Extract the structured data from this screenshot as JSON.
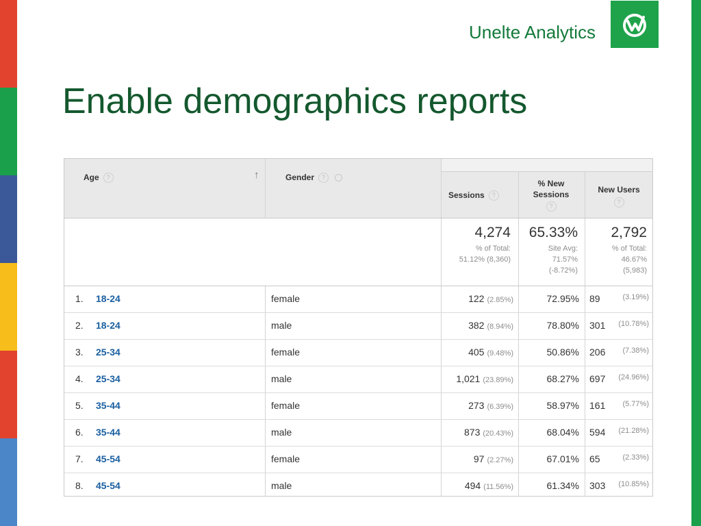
{
  "slide": {
    "brand": "Unelte Analytics",
    "title": "Enable demographics reports",
    "stripe_colors": [
      "#e2432e",
      "#1aa04a",
      "#3b5998",
      "#f7bd1a",
      "#e2432e",
      "#4a86c8"
    ]
  },
  "report": {
    "headers": {
      "age": "Age",
      "gender": "Gender",
      "sessions": "Sessions",
      "new_sessions": "% New Sessions",
      "new_users": "New Users",
      "help_glyph": "?",
      "sort_arrow": "↑"
    },
    "totals": {
      "sessions": {
        "value": "4,274",
        "line1": "% of Total:",
        "line2": "51.12% (8,360)"
      },
      "new_sessions": {
        "value": "65.33%",
        "line1": "Site Avg:",
        "line2": "71.57%",
        "line3": "(-8.72%)"
      },
      "new_users": {
        "value": "2,792",
        "line1": "% of Total:",
        "line2": "46.67%",
        "line3": "(5,983)"
      }
    },
    "rows": [
      {
        "index": "1.",
        "age": "18-24",
        "gender": "female",
        "sessions": "122",
        "sessions_pct": "(2.85%)",
        "new_sessions": "72.95%",
        "new_users": "89",
        "new_users_pct": "(3.19%)"
      },
      {
        "index": "2.",
        "age": "18-24",
        "gender": "male",
        "sessions": "382",
        "sessions_pct": "(8.94%)",
        "new_sessions": "78.80%",
        "new_users": "301",
        "new_users_pct": "(10.78%)"
      },
      {
        "index": "3.",
        "age": "25-34",
        "gender": "female",
        "sessions": "405",
        "sessions_pct": "(9.48%)",
        "new_sessions": "50.86%",
        "new_users": "206",
        "new_users_pct": "(7.38%)"
      },
      {
        "index": "4.",
        "age": "25-34",
        "gender": "male",
        "sessions": "1,021",
        "sessions_pct": "(23.89%)",
        "new_sessions": "68.27%",
        "new_users": "697",
        "new_users_pct": "(24.96%)"
      },
      {
        "index": "5.",
        "age": "35-44",
        "gender": "female",
        "sessions": "273",
        "sessions_pct": "(6.39%)",
        "new_sessions": "58.97%",
        "new_users": "161",
        "new_users_pct": "(5.77%)"
      },
      {
        "index": "6.",
        "age": "35-44",
        "gender": "male",
        "sessions": "873",
        "sessions_pct": "(20.43%)",
        "new_sessions": "68.04%",
        "new_users": "594",
        "new_users_pct": "(21.28%)"
      },
      {
        "index": "7.",
        "age": "45-54",
        "gender": "female",
        "sessions": "97",
        "sessions_pct": "(2.27%)",
        "new_sessions": "67.01%",
        "new_users": "65",
        "new_users_pct": "(2.33%)"
      },
      {
        "index": "8.",
        "age": "45-54",
        "gender": "male",
        "sessions": "494",
        "sessions_pct": "(11.56%)",
        "new_sessions": "61.34%",
        "new_users": "303",
        "new_users_pct": "(10.85%)"
      }
    ]
  }
}
